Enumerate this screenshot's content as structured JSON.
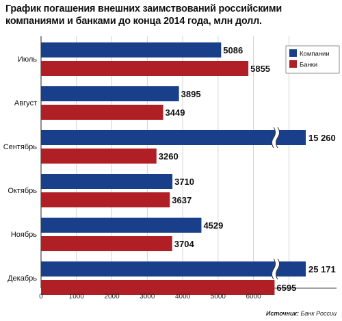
{
  "chart_data": {
    "type": "bar",
    "orientation": "horizontal",
    "title": "График погашения внешних заимствований российскими компаниями и банками до конца 2014 года, млн долл.",
    "categories": [
      "Июль",
      "Август",
      "Сентябрь",
      "Октябрь",
      "Ноябрь",
      "Декабрь"
    ],
    "series": [
      {
        "name": "Компании",
        "color": "#1a3f8a",
        "values": [
          5086,
          3895,
          15260,
          3710,
          4529,
          25171
        ],
        "labels": [
          "5086",
          "3895",
          "15 260",
          "3710",
          "4529",
          "25 171"
        ]
      },
      {
        "name": "Банки",
        "color": "#b11f26",
        "values": [
          5855,
          3449,
          3260,
          3637,
          3704,
          6595
        ],
        "labels": [
          "5855",
          "3449",
          "3260",
          "3637",
          "3704",
          "6595"
        ]
      }
    ],
    "xlim": [
      0,
      7000
    ],
    "xticks": [
      "0",
      "1000",
      "2000",
      "3000",
      "4000",
      "5000",
      "6000"
    ],
    "axis_break": true,
    "grid": true,
    "legend_position": "top-right",
    "source_label": "Источник:",
    "source_value": "Банк России"
  }
}
